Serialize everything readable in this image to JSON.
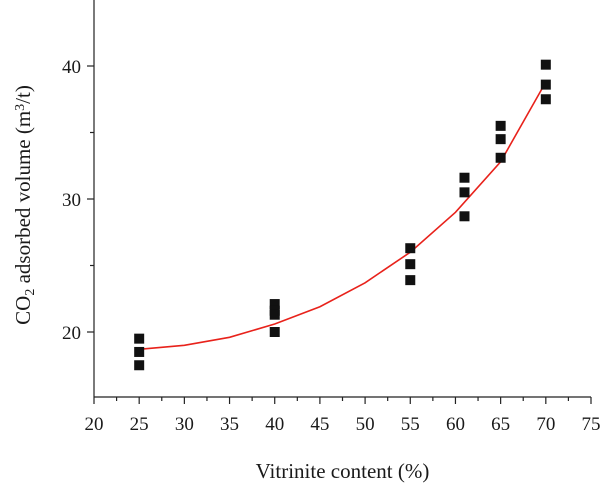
{
  "chart_data": {
    "type": "scatter",
    "title": "",
    "xlabel": "Vitrinite content (%)",
    "ylabel_parts": [
      "CO",
      "2",
      " adsorbed volume (m",
      "3",
      "/t)"
    ],
    "xlim": [
      20,
      75
    ],
    "ylim": [
      15,
      45
    ],
    "x_ticks": [
      20,
      25,
      30,
      35,
      40,
      45,
      50,
      55,
      60,
      65,
      70,
      75
    ],
    "y_ticks": [
      20,
      30,
      40
    ],
    "grid": false,
    "series": [
      {
        "marker": "square",
        "color": "#111111",
        "points": [
          [
            25,
            19.5
          ],
          [
            25,
            18.5
          ],
          [
            25,
            17.5
          ],
          [
            40,
            22.1
          ],
          [
            40,
            21.6
          ],
          [
            40,
            21.3
          ],
          [
            40,
            20.0
          ],
          [
            55,
            26.3
          ],
          [
            55,
            25.1
          ],
          [
            55,
            23.9
          ],
          [
            61,
            31.6
          ],
          [
            61,
            30.5
          ],
          [
            61,
            28.7
          ],
          [
            65,
            35.5
          ],
          [
            65,
            34.5
          ],
          [
            65,
            33.1
          ],
          [
            70,
            40.1
          ],
          [
            70,
            38.6
          ],
          [
            70,
            37.5
          ]
        ]
      },
      {
        "type": "line",
        "color": "#e8221b",
        "fit": "quadratic",
        "points": [
          [
            25,
            18.7
          ],
          [
            30,
            19.0
          ],
          [
            35,
            19.6
          ],
          [
            40,
            20.6
          ],
          [
            45,
            21.9
          ],
          [
            50,
            23.7
          ],
          [
            55,
            26.0
          ],
          [
            60,
            29.0
          ],
          [
            65,
            32.8
          ],
          [
            70,
            38.8
          ]
        ]
      }
    ]
  }
}
